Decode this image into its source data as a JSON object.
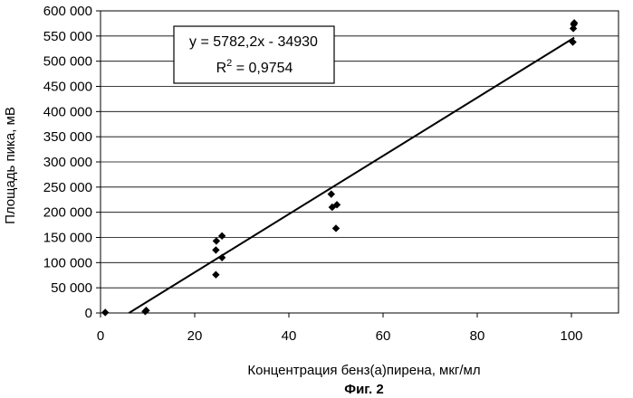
{
  "chart_data": {
    "type": "scatter",
    "xlabel": "Концентрация бенз(а)пирена, мкг/мл",
    "ylabel": "Площадь пика, мВ",
    "caption": "Фиг. 2",
    "xlim": [
      0,
      110
    ],
    "ylim": [
      0,
      600000
    ],
    "x_ticks": [
      0,
      20,
      40,
      60,
      80,
      100
    ],
    "x_tick_labels": [
      "0",
      "20",
      "40",
      "60",
      "80",
      "100"
    ],
    "y_ticks": [
      0,
      50000,
      100000,
      150000,
      200000,
      250000,
      300000,
      350000,
      400000,
      450000,
      500000,
      550000,
      600000
    ],
    "y_tick_labels": [
      "0",
      "50 000",
      "100 000",
      "150 000",
      "200 000",
      "250 000",
      "300 000",
      "350 000",
      "400 000",
      "450 000",
      "500 000",
      "550 000",
      "600 000"
    ],
    "grid": "horizontal",
    "legend": "none",
    "marker_color": "#000000",
    "line_color": "#000000",
    "points": [
      {
        "x": 1.0,
        "y": 1000
      },
      {
        "x": 9.5,
        "y": 3000
      },
      {
        "x": 9.7,
        "y": 5000
      },
      {
        "x": 24.5,
        "y": 76000
      },
      {
        "x": 24.5,
        "y": 125000
      },
      {
        "x": 24.6,
        "y": 143000
      },
      {
        "x": 25.8,
        "y": 110000
      },
      {
        "x": 25.8,
        "y": 153000
      },
      {
        "x": 49.0,
        "y": 236000
      },
      {
        "x": 49.2,
        "y": 210000
      },
      {
        "x": 50.0,
        "y": 168000
      },
      {
        "x": 50.2,
        "y": 215000
      },
      {
        "x": 100.3,
        "y": 538000
      },
      {
        "x": 100.4,
        "y": 565000
      },
      {
        "x": 100.5,
        "y": 573000
      },
      {
        "x": 100.6,
        "y": 576000
      }
    ],
    "trendline": {
      "slope": 5782.2,
      "intercept": -34930,
      "equation": "y = 5782,2x - 34930",
      "r2_label": "R",
      "r2_sup": "2",
      "r2_value": " = 0,9754"
    }
  }
}
